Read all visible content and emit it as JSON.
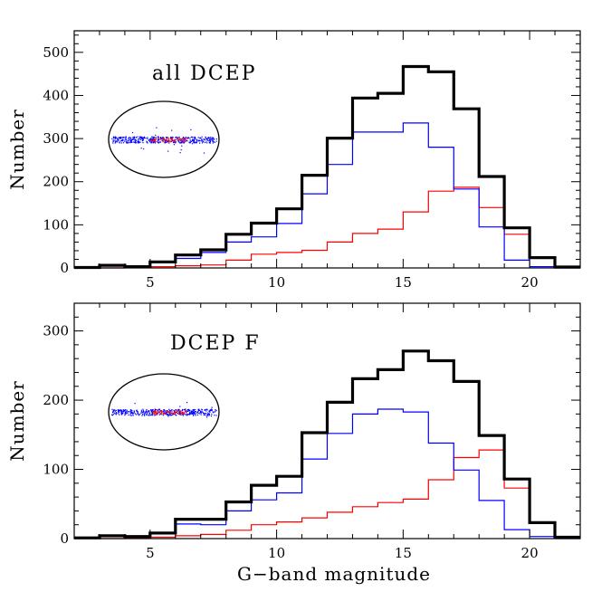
{
  "chart_data": [
    {
      "type": "histogram",
      "label": "all DCEP",
      "ylabel": "Number",
      "xlabel": "",
      "xlim": [
        2,
        22
      ],
      "ylim": [
        0,
        550
      ],
      "xticks_major": [
        5,
        10,
        15,
        20
      ],
      "yticks_major": [
        0,
        100,
        200,
        300,
        400,
        500
      ],
      "bins": [
        [
          2,
          3
        ],
        [
          3,
          4
        ],
        [
          4,
          5
        ],
        [
          5,
          6
        ],
        [
          6,
          7
        ],
        [
          7,
          8
        ],
        [
          8,
          9
        ],
        [
          9,
          10
        ],
        [
          10,
          11
        ],
        [
          11,
          12
        ],
        [
          12,
          13
        ],
        [
          13,
          14
        ],
        [
          14,
          15
        ],
        [
          15,
          16
        ],
        [
          16,
          17
        ],
        [
          17,
          18
        ],
        [
          18,
          19
        ],
        [
          19,
          20
        ],
        [
          20,
          21
        ],
        [
          21,
          22
        ]
      ],
      "series": [
        {
          "color": "#000000",
          "values": [
            1,
            6,
            3,
            14,
            30,
            42,
            78,
            104,
            137,
            215,
            301,
            394,
            405,
            467,
            455,
            369,
            212,
            93,
            24,
            2
          ]
        },
        {
          "color": "#0000ff",
          "values": [
            1,
            7,
            3,
            12,
            22,
            36,
            60,
            72,
            103,
            172,
            240,
            315,
            315,
            336,
            280,
            183,
            95,
            18,
            3,
            0
          ]
        },
        {
          "color": "#ff0000",
          "values": [
            0,
            0,
            1,
            3,
            5,
            7,
            18,
            32,
            36,
            41,
            60,
            80,
            90,
            130,
            178,
            187,
            140,
            78,
            24,
            2
          ]
        }
      ],
      "inset": {
        "shape": "ellipse",
        "colors": [
          "#0000ff",
          "#ff0000"
        ]
      }
    },
    {
      "type": "histogram",
      "label": "DCEP F",
      "ylabel": "Number",
      "xlabel": "G−band magnitude",
      "xlim": [
        2,
        22
      ],
      "ylim": [
        0,
        340
      ],
      "xticks_major": [
        5,
        10,
        15,
        20
      ],
      "yticks_major": [
        0,
        100,
        200,
        300
      ],
      "bins": [
        [
          2,
          3
        ],
        [
          3,
          4
        ],
        [
          4,
          5
        ],
        [
          5,
          6
        ],
        [
          6,
          7
        ],
        [
          7,
          8
        ],
        [
          8,
          9
        ],
        [
          9,
          10
        ],
        [
          10,
          11
        ],
        [
          11,
          12
        ],
        [
          12,
          13
        ],
        [
          13,
          14
        ],
        [
          14,
          15
        ],
        [
          15,
          16
        ],
        [
          16,
          17
        ],
        [
          17,
          18
        ],
        [
          18,
          19
        ],
        [
          19,
          20
        ],
        [
          20,
          21
        ],
        [
          21,
          22
        ]
      ],
      "series": [
        {
          "color": "#000000",
          "values": [
            1,
            4,
            3,
            8,
            28,
            28,
            53,
            77,
            90,
            153,
            197,
            231,
            244,
            271,
            257,
            227,
            149,
            86,
            23,
            2
          ]
        },
        {
          "color": "#0000ff",
          "values": [
            1,
            5,
            3,
            8,
            21,
            20,
            40,
            56,
            66,
            115,
            152,
            180,
            187,
            183,
            138,
            99,
            55,
            13,
            3,
            0
          ]
        },
        {
          "color": "#ff0000",
          "values": [
            0,
            0,
            1,
            2,
            4,
            6,
            12,
            20,
            24,
            30,
            38,
            46,
            52,
            57,
            85,
            117,
            128,
            73,
            22,
            2
          ]
        }
      ],
      "inset": {
        "shape": "ellipse",
        "colors": [
          "#0000ff",
          "#ff0000"
        ]
      }
    }
  ]
}
